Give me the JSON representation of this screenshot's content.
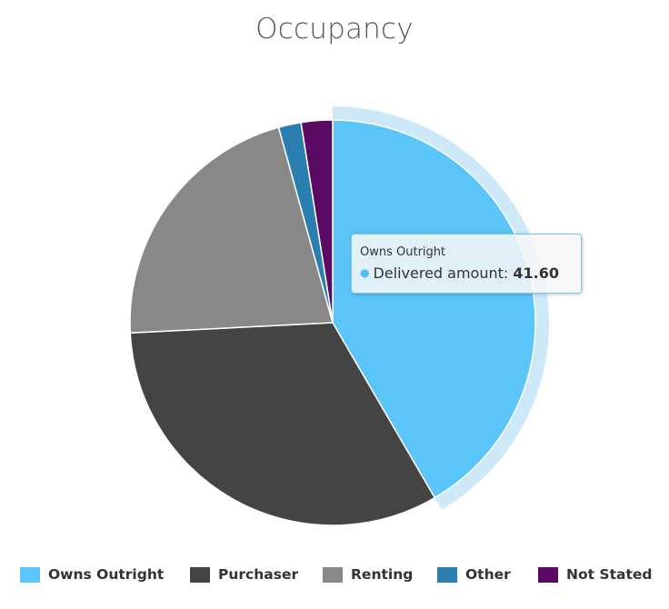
{
  "chart_data": {
    "type": "pie",
    "title": "Occupancy",
    "series_name": "Delivered amount",
    "slices": [
      {
        "name": "Owns Outright",
        "value": 41.6,
        "color": "#5bc5f9"
      },
      {
        "name": "Purchaser",
        "value": 32.6,
        "color": "#444444"
      },
      {
        "name": "Renting",
        "value": 21.5,
        "color": "#888888"
      },
      {
        "name": "Other",
        "value": 1.8,
        "color": "#2a7fb0"
      },
      {
        "name": "Not Stated",
        "value": 2.5,
        "color": "#5a0a63"
      }
    ],
    "legend": {
      "position": "bottom"
    },
    "highlighted_slice": "Owns Outright",
    "halo_color": "#cde9f8"
  },
  "tooltip": {
    "title": "Owns Outright",
    "series_label": "Delivered amount:",
    "value": "41.60"
  }
}
